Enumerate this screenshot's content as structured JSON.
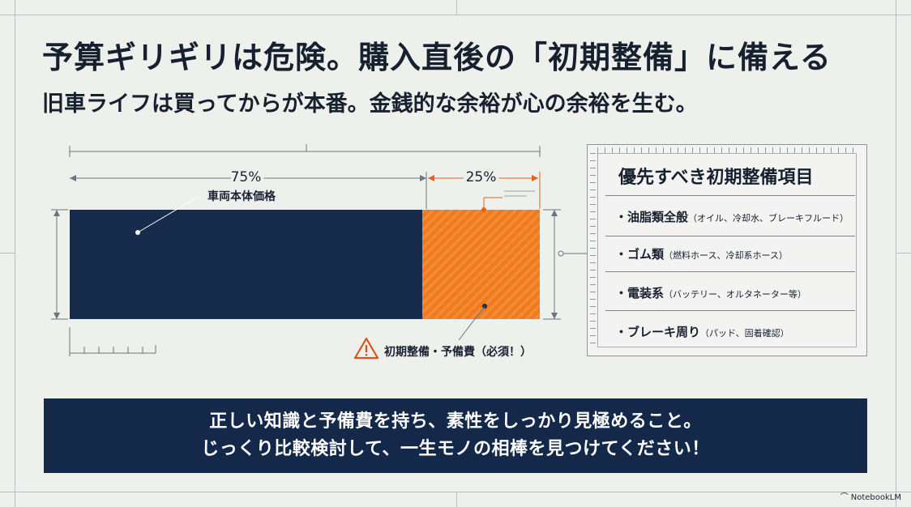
{
  "header": {
    "title": "予算ギリギリは危険。購入直後の「初期整備」に備える",
    "subtitle": "旧車ライフは買ってからが本番。金銭的な余裕が心の余裕を生む。"
  },
  "chart_data": {
    "type": "bar",
    "orientation": "horizontal-stacked",
    "categories": [
      "車両本体価格",
      "初期整備・予備費（必須！）"
    ],
    "values": [
      75,
      25
    ],
    "value_labels": [
      "75%",
      "25%"
    ],
    "colors": [
      "#14294a",
      "#f07a1e"
    ],
    "annotation_icon": "warning-triangle-icon"
  },
  "checklist": {
    "title": "優先すべき初期整備項目",
    "items": [
      {
        "label": "・油脂類全般",
        "note": "（オイル、冷却水、ブレーキフルード）"
      },
      {
        "label": "・ゴム類",
        "note": "（燃料ホース、冷却系ホース）"
      },
      {
        "label": "・電装系",
        "note": "（バッテリー、オルタネーター等）"
      },
      {
        "label": "・ブレーキ周り",
        "note": "（パッド、固着確認）"
      }
    ]
  },
  "banner": {
    "line1": "正しい知識と予備費を持ち、素性をしっかり見極めること。",
    "line2": "じっくり比較検討して、一生モノの相棒を見つけてください！"
  },
  "watermark": {
    "text": "NotebookLM"
  },
  "colors": {
    "navy": "#14294a",
    "orange": "#f07a1e",
    "warning": "#d9541a",
    "background": "#eef0ec"
  }
}
